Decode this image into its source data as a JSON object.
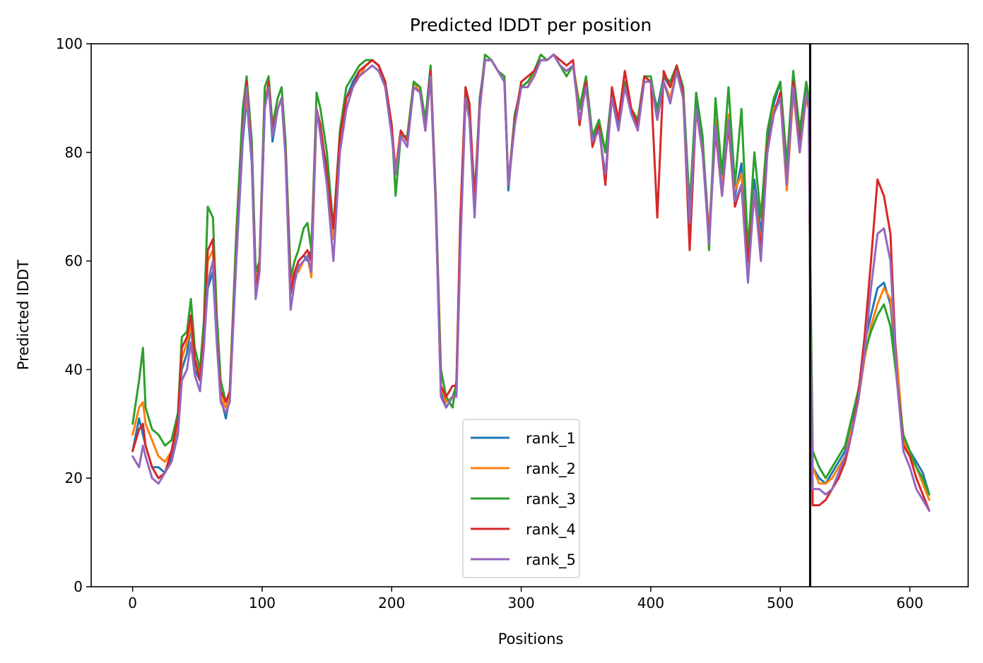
{
  "chart_data": {
    "type": "line",
    "title": "Predicted lDDT per position",
    "xlabel": "Positions",
    "ylabel": "Predicted lDDT",
    "xlim": [
      -32,
      645
    ],
    "ylim": [
      0,
      100
    ],
    "xticks": [
      0,
      100,
      200,
      300,
      400,
      500,
      600
    ],
    "yticks": [
      0,
      20,
      40,
      60,
      80,
      100
    ],
    "x_tick_labels": [
      "0",
      "100",
      "200",
      "300",
      "400",
      "500",
      "600"
    ],
    "y_tick_labels": [
      "0",
      "20",
      "40",
      "60",
      "80",
      "100"
    ],
    "grid": false,
    "legend_position": "lower center",
    "chain_boundary_x": 523,
    "series_x": [
      0,
      5,
      8,
      10,
      15,
      20,
      25,
      30,
      35,
      38,
      42,
      45,
      48,
      52,
      55,
      58,
      62,
      65,
      68,
      72,
      75,
      80,
      85,
      88,
      92,
      95,
      98,
      102,
      105,
      108,
      112,
      115,
      118,
      122,
      125,
      128,
      132,
      135,
      138,
      142,
      145,
      150,
      155,
      160,
      165,
      170,
      175,
      180,
      185,
      190,
      195,
      200,
      203,
      207,
      212,
      217,
      222,
      226,
      230,
      234,
      238,
      242,
      247,
      250,
      253,
      257,
      260,
      264,
      268,
      272,
      277,
      282,
      287,
      290,
      295,
      300,
      305,
      310,
      315,
      320,
      325,
      330,
      335,
      340,
      345,
      350,
      355,
      360,
      365,
      370,
      375,
      380,
      385,
      390,
      395,
      400,
      405,
      410,
      415,
      420,
      425,
      430,
      435,
      440,
      445,
      450,
      455,
      460,
      465,
      470,
      475,
      480,
      485,
      490,
      495,
      500,
      505,
      510,
      515,
      520,
      522,
      523,
      525,
      530,
      535,
      540,
      545,
      550,
      555,
      560,
      565,
      570,
      575,
      580,
      585,
      590,
      595,
      600,
      605,
      610,
      615
    ],
    "series": [
      {
        "name": "rank_1",
        "color": "#1f77b4",
        "values": [
          25,
          31,
          28,
          26,
          22,
          22,
          21,
          24,
          30,
          40,
          43,
          48,
          40,
          38,
          45,
          55,
          58,
          45,
          35,
          31,
          35,
          60,
          82,
          90,
          78,
          55,
          60,
          88,
          93,
          82,
          88,
          90,
          80,
          55,
          57,
          60,
          61,
          60,
          62,
          88,
          84,
          77,
          65,
          82,
          90,
          93,
          95,
          96,
          97,
          96,
          93,
          84,
          76,
          84,
          82,
          93,
          92,
          85,
          95,
          70,
          36,
          33,
          35,
          37,
          65,
          91,
          88,
          70,
          90,
          97,
          97,
          95,
          94,
          73,
          86,
          92,
          93,
          94,
          97,
          97,
          98,
          96,
          95,
          96,
          88,
          93,
          82,
          85,
          80,
          91,
          85,
          93,
          87,
          86,
          94,
          93,
          88,
          94,
          92,
          96,
          91,
          70,
          90,
          82,
          65,
          86,
          74,
          87,
          72,
          78,
          59,
          75,
          65,
          82,
          89,
          93,
          76,
          93,
          82,
          92,
          89,
          60,
          22,
          20,
          19,
          21,
          23,
          25,
          30,
          35,
          45,
          50,
          55,
          56,
          52,
          40,
          27,
          25,
          23,
          21,
          17
        ]
      },
      {
        "name": "rank_2",
        "color": "#ff7f0e",
        "values": [
          28,
          33,
          34,
          30,
          27,
          24,
          23,
          25,
          30,
          42,
          45,
          48,
          42,
          39,
          47,
          60,
          62,
          47,
          35,
          33,
          35,
          62,
          85,
          90,
          80,
          55,
          60,
          90,
          92,
          85,
          88,
          90,
          81,
          56,
          58,
          58,
          60,
          61,
          57,
          87,
          84,
          75,
          64,
          82,
          90,
          92,
          94,
          96,
          97,
          96,
          92,
          84,
          77,
          84,
          82,
          93,
          91,
          84,
          94,
          70,
          37,
          34,
          35,
          36,
          64,
          90,
          86,
          70,
          88,
          97,
          97,
          95,
          93,
          74,
          85,
          92,
          92,
          95,
          97,
          97,
          98,
          96,
          95,
          96,
          89,
          92,
          83,
          86,
          80,
          90,
          86,
          92,
          88,
          85,
          93,
          93,
          86,
          93,
          90,
          95,
          90,
          68,
          88,
          80,
          65,
          86,
          74,
          87,
          73,
          76,
          58,
          73,
          63,
          80,
          88,
          90,
          73,
          91,
          80,
          90,
          88,
          58,
          22,
          19,
          19,
          20,
          22,
          24,
          29,
          34,
          42,
          48,
          52,
          55,
          53,
          42,
          27,
          24,
          22,
          19,
          16
        ]
      },
      {
        "name": "rank_3",
        "color": "#2ca02c",
        "values": [
          30,
          38,
          44,
          33,
          29,
          28,
          26,
          27,
          32,
          46,
          47,
          53,
          44,
          40,
          49,
          70,
          68,
          50,
          38,
          34,
          36,
          65,
          88,
          94,
          82,
          58,
          60,
          92,
          94,
          85,
          90,
          92,
          82,
          57,
          60,
          62,
          66,
          67,
          62,
          91,
          88,
          80,
          66,
          84,
          92,
          94,
          96,
          97,
          97,
          96,
          93,
          85,
          72,
          83,
          83,
          93,
          92,
          86,
          96,
          72,
          40,
          35,
          33,
          38,
          67,
          92,
          88,
          72,
          89,
          98,
          97,
          95,
          94,
          74,
          87,
          92,
          93,
          95,
          98,
          97,
          98,
          96,
          94,
          96,
          88,
          94,
          83,
          86,
          80,
          91,
          86,
          93,
          88,
          86,
          94,
          94,
          87,
          94,
          93,
          96,
          92,
          70,
          91,
          83,
          62,
          90,
          76,
          92,
          74,
          88,
          62,
          80,
          68,
          84,
          90,
          93,
          78,
          95,
          84,
          93,
          90,
          62,
          25,
          22,
          20,
          22,
          24,
          26,
          31,
          36,
          43,
          47,
          50,
          52,
          48,
          38,
          28,
          25,
          22,
          20,
          17
        ]
      },
      {
        "name": "rank_4",
        "color": "#d62728",
        "values": [
          25,
          29,
          30,
          26,
          22,
          20,
          21,
          25,
          31,
          44,
          46,
          50,
          42,
          38,
          46,
          62,
          64,
          46,
          36,
          34,
          36,
          61,
          84,
          93,
          80,
          54,
          60,
          88,
          93,
          84,
          88,
          90,
          80,
          54,
          58,
          60,
          61,
          62,
          60,
          88,
          85,
          76,
          66,
          83,
          90,
          92,
          95,
          96,
          97,
          96,
          93,
          85,
          76,
          84,
          82,
          92,
          91,
          84,
          95,
          71,
          37,
          35,
          37,
          37,
          68,
          92,
          89,
          71,
          89,
          97,
          97,
          95,
          93,
          74,
          86,
          93,
          94,
          95,
          97,
          97,
          98,
          97,
          96,
          97,
          85,
          93,
          81,
          85,
          74,
          92,
          86,
          95,
          88,
          85,
          94,
          93,
          68,
          95,
          92,
          96,
          91,
          62,
          88,
          80,
          64,
          84,
          72,
          85,
          70,
          74,
          60,
          72,
          62,
          81,
          87,
          91,
          74,
          93,
          81,
          91,
          88,
          58,
          15,
          15,
          16,
          18,
          20,
          23,
          28,
          35,
          46,
          60,
          75,
          72,
          65,
          38,
          26,
          24,
          20,
          17,
          14
        ]
      },
      {
        "name": "rank_5",
        "color": "#9467bd",
        "values": [
          24,
          22,
          26,
          24,
          20,
          19,
          21,
          23,
          28,
          38,
          40,
          45,
          39,
          36,
          44,
          56,
          60,
          45,
          34,
          32,
          34,
          60,
          83,
          92,
          79,
          53,
          58,
          88,
          92,
          83,
          88,
          90,
          79,
          51,
          56,
          59,
          60,
          61,
          58,
          88,
          83,
          74,
          60,
          80,
          88,
          92,
          94,
          95,
          96,
          95,
          92,
          83,
          76,
          83,
          81,
          92,
          91,
          84,
          94,
          70,
          35,
          33,
          35,
          35,
          62,
          90,
          86,
          68,
          88,
          97,
          97,
          95,
          93,
          74,
          85,
          92,
          92,
          94,
          97,
          97,
          98,
          96,
          95,
          96,
          86,
          92,
          82,
          84,
          76,
          90,
          84,
          92,
          87,
          84,
          93,
          93,
          86,
          93,
          89,
          95,
          90,
          67,
          88,
          80,
          63,
          85,
          72,
          86,
          71,
          74,
          56,
          73,
          60,
          80,
          87,
          90,
          74,
          92,
          80,
          91,
          88,
          56,
          18,
          18,
          17,
          18,
          21,
          24,
          28,
          34,
          43,
          55,
          65,
          66,
          60,
          38,
          25,
          22,
          18,
          16,
          14
        ]
      }
    ]
  }
}
